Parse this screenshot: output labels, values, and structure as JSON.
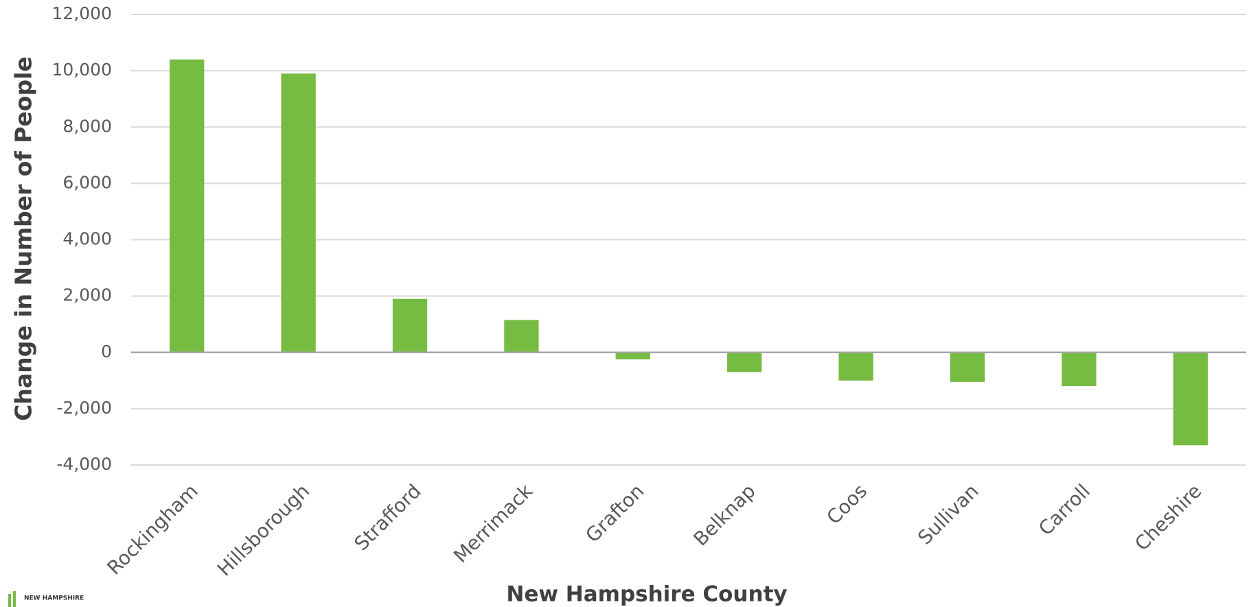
{
  "chart_data": {
    "type": "bar",
    "x_label": "New Hampshire County",
    "y_label": "Change in Number of People",
    "categories": [
      "Rockingham",
      "Hillsborough",
      "Strafford",
      "Merrimack",
      "Grafton",
      "Belknap",
      "Coos",
      "Sullivan",
      "Carroll",
      "Cheshire"
    ],
    "values": [
      10400,
      9900,
      1900,
      1150,
      -250,
      -700,
      -1000,
      -1050,
      -1200,
      -3300
    ],
    "color": "#76bc43",
    "ylim": [
      -4000,
      12000
    ],
    "yticks": [
      {
        "value": -4000,
        "label": "-4,000"
      },
      {
        "value": -2000,
        "label": "-2,000"
      },
      0,
      {
        "value": 2000,
        "label": "2,000"
      },
      {
        "value": 4000,
        "label": "4,000"
      },
      {
        "value": 6000,
        "label": "6,000"
      },
      {
        "value": 8000,
        "label": "8,000"
      },
      {
        "value": 10000,
        "label": "10,000"
      },
      {
        "value": 12000,
        "label": "12,000"
      }
    ],
    "grid": true,
    "logo_text": "NEW HAMPSHIRE"
  }
}
